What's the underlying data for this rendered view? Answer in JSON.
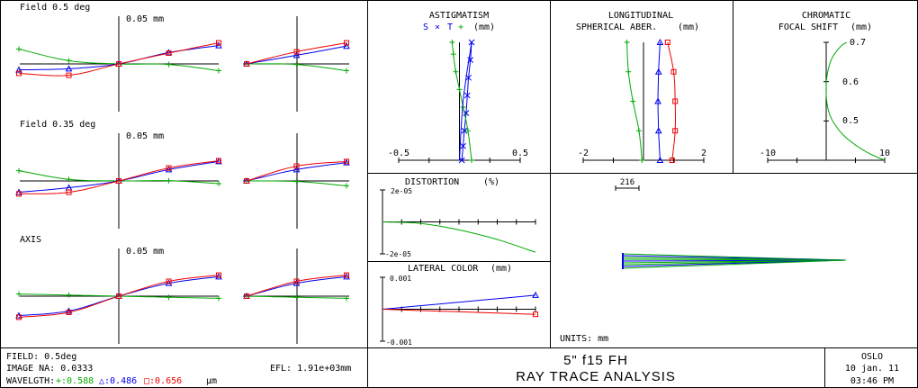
{
  "colors": {
    "green": "#00aa00",
    "blue": "#0000ee",
    "red": "#ee0000",
    "black": "#000000"
  },
  "ray_fans": {
    "blocks": [
      {
        "field_label": "Field 0.5 deg",
        "scale_label": "0.05 mm",
        "meridional": {
          "green": [
            [
              -1,
              0.55
            ],
            [
              -0.5,
              0.12
            ],
            [
              0,
              0
            ],
            [
              0.5,
              -0.02
            ],
            [
              1,
              -0.25
            ]
          ],
          "blue": [
            [
              -1,
              -0.22
            ],
            [
              -0.5,
              -0.18
            ],
            [
              0,
              0
            ],
            [
              0.5,
              0.42
            ],
            [
              1,
              0.68
            ]
          ],
          "red": [
            [
              -1,
              -0.35
            ],
            [
              -0.5,
              -0.42
            ],
            [
              0,
              0
            ],
            [
              0.5,
              0.4
            ],
            [
              1,
              0.78
            ]
          ]
        },
        "sagittal": {
          "green": [
            [
              0,
              0
            ],
            [
              0.5,
              -0.02
            ],
            [
              1,
              -0.25
            ]
          ],
          "blue": [
            [
              0,
              0
            ],
            [
              0.5,
              0.32
            ],
            [
              1,
              0.66
            ]
          ],
          "red": [
            [
              0,
              0
            ],
            [
              0.5,
              0.45
            ],
            [
              1,
              0.78
            ]
          ]
        }
      },
      {
        "field_label": "Field 0.35 deg",
        "scale_label": "0.05 mm",
        "meridional": {
          "green": [
            [
              -1,
              0.38
            ],
            [
              -0.5,
              0.06
            ],
            [
              0,
              0
            ],
            [
              0.5,
              0.01
            ],
            [
              1,
              -0.1
            ]
          ],
          "blue": [
            [
              -1,
              -0.42
            ],
            [
              -0.5,
              -0.25
            ],
            [
              0,
              0
            ],
            [
              0.5,
              0.42
            ],
            [
              1,
              0.72
            ]
          ],
          "red": [
            [
              -1,
              -0.48
            ],
            [
              -0.5,
              -0.42
            ],
            [
              0,
              0
            ],
            [
              0.5,
              0.48
            ],
            [
              1,
              0.75
            ]
          ]
        },
        "sagittal": {
          "green": [
            [
              0,
              0
            ],
            [
              0.5,
              -0.02
            ],
            [
              1,
              -0.18
            ]
          ],
          "blue": [
            [
              0,
              0
            ],
            [
              0.5,
              0.42
            ],
            [
              1,
              0.68
            ]
          ],
          "red": [
            [
              0,
              0
            ],
            [
              0.5,
              0.55
            ],
            [
              1,
              0.72
            ]
          ]
        }
      },
      {
        "field_label": "AXIS",
        "scale_label": "0.05 mm",
        "meridional": {
          "green": [
            [
              -1,
              0.08
            ],
            [
              -0.5,
              0.04
            ],
            [
              0,
              0
            ],
            [
              0.5,
              -0.04
            ],
            [
              1,
              -0.08
            ]
          ],
          "blue": [
            [
              -1,
              -0.72
            ],
            [
              -0.5,
              -0.55
            ],
            [
              0,
              0
            ],
            [
              0.5,
              0.48
            ],
            [
              1,
              0.72
            ]
          ],
          "red": [
            [
              -1,
              -0.78
            ],
            [
              -0.5,
              -0.6
            ],
            [
              0,
              0
            ],
            [
              0.5,
              0.55
            ],
            [
              1,
              0.78
            ]
          ]
        },
        "sagittal": {
          "green": [
            [
              0,
              0
            ],
            [
              0.5,
              -0.04
            ],
            [
              1,
              -0.08
            ]
          ],
          "blue": [
            [
              0,
              0
            ],
            [
              0.5,
              0.48
            ],
            [
              1,
              0.72
            ]
          ],
          "red": [
            [
              0,
              0
            ],
            [
              0.5,
              0.55
            ],
            [
              1,
              0.78
            ]
          ]
        }
      }
    ]
  },
  "chart_data": [
    {
      "type": "line",
      "title": "ASTIGMATISM",
      "legend_s": "S",
      "legend_t": "T",
      "legend_plus": "+",
      "unit": "(mm)",
      "xlim": [
        -0.5,
        0.5
      ],
      "tick_labels": [
        "-0.5",
        "0.5"
      ],
      "ylim": [
        0,
        1
      ],
      "series": [
        {
          "name": "S",
          "color": "blue",
          "marker": "x",
          "x": [
            0.1,
            0.09,
            0.075,
            0.065,
            0.055,
            0.04,
            0.03,
            0.02
          ],
          "y": [
            1.0,
            0.85,
            0.7,
            0.55,
            0.4,
            0.25,
            0.12,
            0.0
          ]
        },
        {
          "name": "T",
          "color": "green",
          "marker": "plus",
          "x": [
            0.1,
            0.07,
            0.03,
            0.0,
            -0.03,
            -0.05,
            -0.06
          ],
          "y": [
            0.0,
            0.25,
            0.45,
            0.6,
            0.75,
            0.9,
            1.0
          ]
        },
        {
          "name": "ref",
          "color": "blue",
          "marker": "none",
          "x": [
            0,
            0.03,
            0.1
          ],
          "y": [
            0,
            0.5,
            1
          ]
        }
      ]
    },
    {
      "type": "line",
      "title": "LONGITUDINAL",
      "title2": "SPHERICAL ABER.",
      "unit": "(mm)",
      "xlim": [
        -2,
        2
      ],
      "tick_labels": [
        "-2",
        "2"
      ],
      "ylim": [
        0,
        1
      ],
      "series": [
        {
          "name": "0.588",
          "color": "green",
          "marker": "plus",
          "x": [
            -0.05,
            -0.15,
            -0.35,
            -0.5,
            -0.55
          ],
          "y": [
            0,
            0.25,
            0.5,
            0.75,
            1
          ]
        },
        {
          "name": "0.486",
          "color": "blue",
          "marker": "tri",
          "x": [
            0.55,
            0.5,
            0.48,
            0.5,
            0.55
          ],
          "y": [
            0,
            0.25,
            0.5,
            0.75,
            1
          ]
        },
        {
          "name": "0.656",
          "color": "red",
          "marker": "sq",
          "x": [
            0.95,
            1.05,
            1.05,
            1.0,
            0.8
          ],
          "y": [
            0,
            0.25,
            0.5,
            0.75,
            1
          ]
        }
      ]
    },
    {
      "type": "line",
      "title": "CHROMATIC",
      "title2": "FOCAL SHIFT",
      "unit": "(mm)",
      "xlim": [
        -10,
        10
      ],
      "tick_labels": [
        "-10",
        "10"
      ],
      "ylim": [
        0.4,
        0.7
      ],
      "y_tick_labels": [
        "0.7",
        "0.6",
        "0.5"
      ],
      "series": [
        {
          "name": "chromatic",
          "color": "green",
          "x": [
            10,
            7,
            4,
            2,
            0.5,
            0,
            0.2,
            1,
            2.5,
            3.5
          ],
          "y": [
            0.4,
            0.42,
            0.45,
            0.48,
            0.52,
            0.57,
            0.62,
            0.66,
            0.69,
            0.7
          ]
        }
      ]
    },
    {
      "type": "line",
      "title": "DISTORTION",
      "unit": "(%)",
      "y_tick_labels": [
        "2e-05",
        "-2e-05"
      ],
      "ylim": [
        -2e-05,
        2e-05
      ],
      "series": [
        {
          "name": "0.588",
          "color": "green",
          "x": [
            0,
            0.25,
            0.5,
            0.75,
            1
          ],
          "y": [
            0,
            -1e-06,
            -5e-06,
            -1.1e-05,
            -1.9e-05
          ]
        }
      ]
    },
    {
      "type": "line",
      "title": "LATERAL COLOR",
      "unit": "(mm)",
      "y_tick_labels": [
        "0.001",
        "-0.001"
      ],
      "ylim": [
        -0.001,
        0.001
      ],
      "series": [
        {
          "name": "0.486",
          "color": "blue",
          "x": [
            0,
            1
          ],
          "y": [
            0,
            0.00044
          ]
        },
        {
          "name": "0.656",
          "color": "red",
          "x": [
            0,
            1
          ],
          "y": [
            0,
            -0.00016
          ]
        }
      ]
    }
  ],
  "spot_panel": {
    "scale_label": "216",
    "units": "UNITS: mm"
  },
  "footer": {
    "field": "FIELD: 0.5deg",
    "image_na": "IMAGE NA: 0.0333",
    "wavelength_label": "WAVELGTH:",
    "wl_green": "+:0.588",
    "wl_blue": "△:0.486",
    "wl_red": "□:0.656",
    "wl_unit": "μm",
    "efl": "EFL: 1.91e+03mm",
    "title1": "5\" f15 FH",
    "title2": "RAY TRACE ANALYSIS",
    "app": "OSLO",
    "date": "10 jan. 11",
    "time": "03:46 PM"
  }
}
